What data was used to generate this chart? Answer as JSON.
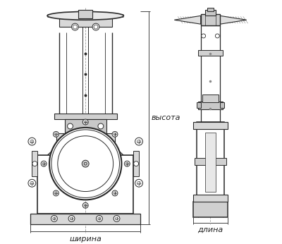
{
  "bg_color": "#ffffff",
  "line_color": "#2a2a2a",
  "dim_color": "#444444",
  "label_color": "#222222",
  "label_высота": "высота",
  "label_ширина": "ширина",
  "label_длина": "длина",
  "font_size_labels": 8,
  "fig_width": 4.0,
  "fig_height": 3.46,
  "dpi": 100
}
